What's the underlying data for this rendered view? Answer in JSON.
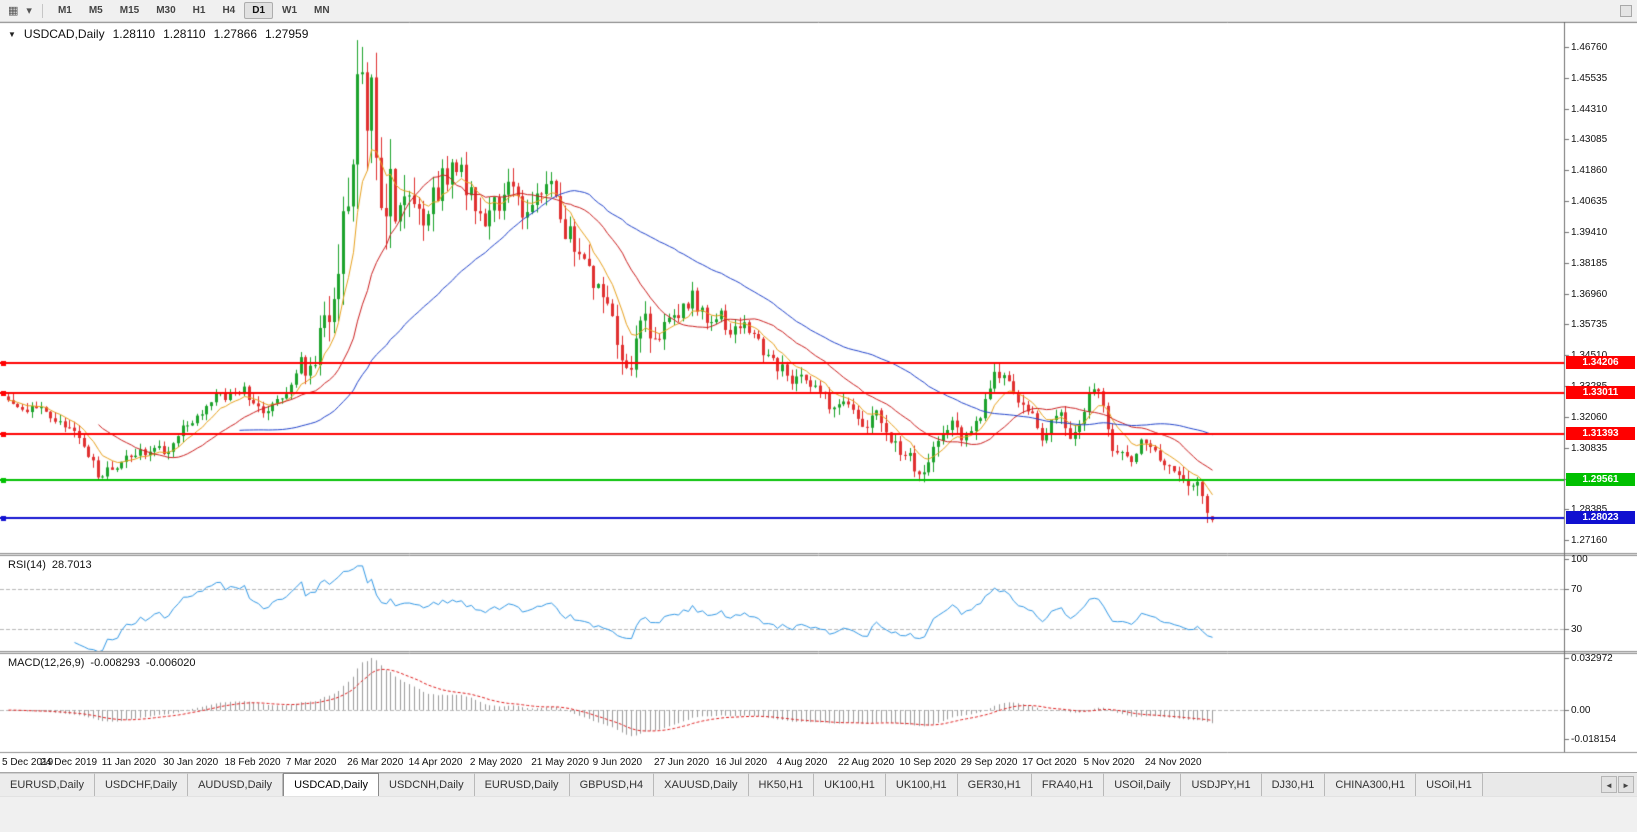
{
  "toolbar": {
    "icon_chart_glyph": "▦",
    "icon_dropdown_glyph": "▾",
    "timeframes": [
      "M1",
      "M5",
      "M15",
      "M30",
      "H1",
      "H4",
      "D1",
      "W1",
      "MN"
    ],
    "active_timeframe": "D1"
  },
  "chart": {
    "collapse_glyph": "▼",
    "title_symbol": "USDCAD,Daily",
    "open": "1.28110",
    "high": "1.28110",
    "low": "1.27866",
    "close": "1.27959"
  },
  "price_scale": {
    "labels": [
      "1.46760",
      "1.45535",
      "1.44310",
      "1.43085",
      "1.41860",
      "1.40635",
      "1.39410",
      "1.38185",
      "1.36960",
      "1.35735",
      "1.34510",
      "1.33285",
      "1.32060",
      "1.30835",
      "1.29610",
      "1.28385",
      "1.27160"
    ]
  },
  "chart_data": {
    "type": "candlestick",
    "symbol": "USDCAD",
    "period": "Daily",
    "bars": 256,
    "price_min": 1.2665,
    "price_max": 1.4775,
    "bull_color": "#1ca32c",
    "bear_color": "#e03030",
    "date_ticks": [
      {
        "bar": 0,
        "label": "5 Dec 2019"
      },
      {
        "bar": 13,
        "label": "24 Dec 2019"
      },
      {
        "bar": 26,
        "label": "11 Jan 2020"
      },
      {
        "bar": 39,
        "label": "30 Jan 2020"
      },
      {
        "bar": 52,
        "label": "18 Feb 2020"
      },
      {
        "bar": 65,
        "label": "7 Mar 2020"
      },
      {
        "bar": 78,
        "label": "26 Mar 2020"
      },
      {
        "bar": 91,
        "label": "14 Apr 2020"
      },
      {
        "bar": 104,
        "label": "2 May 2020"
      },
      {
        "bar": 117,
        "label": "21 May 2020"
      },
      {
        "bar": 130,
        "label": "9 Jun 2020"
      },
      {
        "bar": 143,
        "label": "27 Jun 2020"
      },
      {
        "bar": 156,
        "label": "16 Jul 2020"
      },
      {
        "bar": 169,
        "label": "4 Aug 2020"
      },
      {
        "bar": 182,
        "label": "22 Aug 2020"
      },
      {
        "bar": 195,
        "label": "10 Sep 2020"
      },
      {
        "bar": 208,
        "label": "29 Sep 2020"
      },
      {
        "bar": 221,
        "label": "17 Oct 2020"
      },
      {
        "bar": 234,
        "label": "5 Nov 2020"
      },
      {
        "bar": 247,
        "label": "24 Nov 2020"
      }
    ],
    "close_keypoints": [
      [
        0,
        1.3255
      ],
      [
        8,
        1.323
      ],
      [
        13,
        1.316
      ],
      [
        16,
        1.309
      ],
      [
        19,
        1.297
      ],
      [
        22,
        1.301
      ],
      [
        26,
        1.305
      ],
      [
        30,
        1.306
      ],
      [
        34,
        1.308
      ],
      [
        39,
        1.32
      ],
      [
        43,
        1.327
      ],
      [
        47,
        1.33
      ],
      [
        50,
        1.331
      ],
      [
        52,
        1.3245
      ],
      [
        55,
        1.3225
      ],
      [
        58,
        1.328
      ],
      [
        60,
        1.335
      ],
      [
        62,
        1.342
      ],
      [
        64,
        1.338
      ],
      [
        65,
        1.342
      ],
      [
        66,
        1.355
      ],
      [
        68,
        1.358
      ],
      [
        69,
        1.372
      ],
      [
        70,
        1.385
      ],
      [
        71,
        1.399
      ],
      [
        72,
        1.408
      ],
      [
        73,
        1.425
      ],
      [
        74,
        1.45
      ],
      [
        75,
        1.444
      ],
      [
        76,
        1.43
      ],
      [
        77,
        1.448
      ],
      [
        78,
        1.425
      ],
      [
        79,
        1.405
      ],
      [
        80,
        1.398
      ],
      [
        81,
        1.41
      ],
      [
        82,
        1.395
      ],
      [
        84,
        1.405
      ],
      [
        86,
        1.41
      ],
      [
        88,
        1.402
      ],
      [
        91,
        1.41
      ],
      [
        93,
        1.418
      ],
      [
        95,
        1.422
      ],
      [
        97,
        1.412
      ],
      [
        99,
        1.402
      ],
      [
        101,
        1.398
      ],
      [
        103,
        1.408
      ],
      [
        104,
        1.407
      ],
      [
        106,
        1.413
      ],
      [
        108,
        1.405
      ],
      [
        110,
        1.398
      ],
      [
        112,
        1.406
      ],
      [
        114,
        1.414
      ],
      [
        116,
        1.41
      ],
      [
        117,
        1.398
      ],
      [
        119,
        1.392
      ],
      [
        121,
        1.384
      ],
      [
        123,
        1.376
      ],
      [
        125,
        1.378
      ],
      [
        127,
        1.362
      ],
      [
        129,
        1.352
      ],
      [
        130,
        1.342
      ],
      [
        131,
        1.338
      ],
      [
        132,
        1.341
      ],
      [
        133,
        1.355
      ],
      [
        134,
        1.362
      ],
      [
        135,
        1.358
      ],
      [
        137,
        1.353
      ],
      [
        139,
        1.356
      ],
      [
        141,
        1.36
      ],
      [
        143,
        1.365
      ],
      [
        145,
        1.368
      ],
      [
        147,
        1.362
      ],
      [
        149,
        1.358
      ],
      [
        151,
        1.36
      ],
      [
        153,
        1.356
      ],
      [
        155,
        1.358
      ],
      [
        156,
        1.357
      ],
      [
        158,
        1.352
      ],
      [
        160,
        1.348
      ],
      [
        162,
        1.342
      ],
      [
        164,
        1.339
      ],
      [
        166,
        1.335
      ],
      [
        168,
        1.34
      ],
      [
        169,
        1.336
      ],
      [
        171,
        1.332
      ],
      [
        173,
        1.328
      ],
      [
        175,
        1.324
      ],
      [
        177,
        1.327
      ],
      [
        179,
        1.322
      ],
      [
        181,
        1.318
      ],
      [
        182,
        1.317
      ],
      [
        184,
        1.321
      ],
      [
        186,
        1.315
      ],
      [
        188,
        1.31
      ],
      [
        190,
        1.306
      ],
      [
        192,
        1.302
      ],
      [
        194,
        1.298
      ],
      [
        196,
        1.306
      ],
      [
        198,
        1.313
      ],
      [
        200,
        1.316
      ],
      [
        202,
        1.314
      ],
      [
        204,
        1.318
      ],
      [
        206,
        1.322
      ],
      [
        208,
        1.334
      ],
      [
        210,
        1.338
      ],
      [
        212,
        1.332
      ],
      [
        214,
        1.328
      ],
      [
        216,
        1.325
      ],
      [
        218,
        1.314
      ],
      [
        220,
        1.312
      ],
      [
        221,
        1.318
      ],
      [
        223,
        1.322
      ],
      [
        225,
        1.314
      ],
      [
        227,
        1.318
      ],
      [
        229,
        1.33
      ],
      [
        231,
        1.332
      ],
      [
        233,
        1.318
      ],
      [
        234,
        1.308
      ],
      [
        236,
        1.305
      ],
      [
        238,
        1.302
      ],
      [
        240,
        1.31
      ],
      [
        242,
        1.307
      ],
      [
        244,
        1.305
      ],
      [
        246,
        1.301
      ],
      [
        247,
        1.3
      ],
      [
        249,
        1.296
      ],
      [
        251,
        1.293
      ],
      [
        252,
        1.295
      ],
      [
        253,
        1.29
      ],
      [
        254,
        1.284
      ],
      [
        255,
        1.2796
      ]
    ],
    "range_keypoints": [
      [
        0,
        0.0056
      ],
      [
        18,
        0.006
      ],
      [
        40,
        0.005
      ],
      [
        60,
        0.0062
      ],
      [
        66,
        0.0105
      ],
      [
        70,
        0.026
      ],
      [
        74,
        0.036
      ],
      [
        78,
        0.03
      ],
      [
        84,
        0.021
      ],
      [
        90,
        0.015
      ],
      [
        100,
        0.012
      ],
      [
        117,
        0.011
      ],
      [
        126,
        0.014
      ],
      [
        134,
        0.012
      ],
      [
        150,
        0.008
      ],
      [
        170,
        0.007
      ],
      [
        195,
        0.008
      ],
      [
        220,
        0.0072
      ],
      [
        245,
        0.006
      ],
      [
        252,
        0.009
      ],
      [
        255,
        0.01
      ]
    ],
    "high_spike": {
      "bar": 75,
      "price": 1.4676
    },
    "last_bar": {
      "open": 1.2811,
      "high": 1.2811,
      "low": 1.27866,
      "close": 1.27959
    },
    "moving_averages": [
      {
        "period": 8,
        "method": "ema",
        "color": "#e8a21e"
      },
      {
        "period": 20,
        "method": "sma",
        "color": "#cc2020"
      },
      {
        "period": 50,
        "method": "sma",
        "color": "#2244cc"
      }
    ],
    "horizontal_lines": [
      {
        "price": 1.34206,
        "label": "1.34206",
        "color": "#ff0000",
        "width": 2
      },
      {
        "price": 1.33011,
        "label": "1.33011",
        "color": "#ff0000",
        "width": 2
      },
      {
        "price": 1.31393,
        "label": "1.31393",
        "color": "#ff0000",
        "width": 2
      },
      {
        "price": 1.29561,
        "label": "1.29561",
        "color": "#00c000",
        "width": 2
      },
      {
        "price": 1.28023,
        "label": "1.28023",
        "color": "#1010d0",
        "width": 2
      }
    ]
  },
  "rsi": {
    "name": "RSI(14)",
    "value": "28.7013",
    "period": 14,
    "color": "#3399e6",
    "levels": [
      70,
      30
    ],
    "scale_labels": [
      "100",
      "70",
      "30"
    ]
  },
  "macd": {
    "name": "MACD(12,26,9)",
    "value_main": "-0.008293",
    "value_signal": "-0.006020",
    "fast": 12,
    "slow": 26,
    "signal": 9,
    "scale_max": 0.032972,
    "scale_min": -0.018154,
    "hist_color": "#9c9c9c",
    "signal_color": "#e02020",
    "scale_labels": [
      "0.032972",
      "0.00",
      "-0.018154"
    ]
  },
  "tabs": {
    "scroll_left": "◄",
    "scroll_right": "►",
    "active_index": 3,
    "items": [
      "EURUSD,Daily",
      "USDCHF,Daily",
      "AUDUSD,Daily",
      "USDCAD,Daily",
      "USDCNH,Daily",
      "EURUSD,Daily",
      "GBPUSD,H4",
      "XAUUSD,Daily",
      "HK50,H1",
      "UK100,H1",
      "UK100,H1",
      "GER30,H1",
      "FRA40,H1",
      "USOil,Daily",
      "USDJPY,H1",
      "DJ30,H1",
      "CHINA300,H1",
      "USOil,H1"
    ]
  }
}
